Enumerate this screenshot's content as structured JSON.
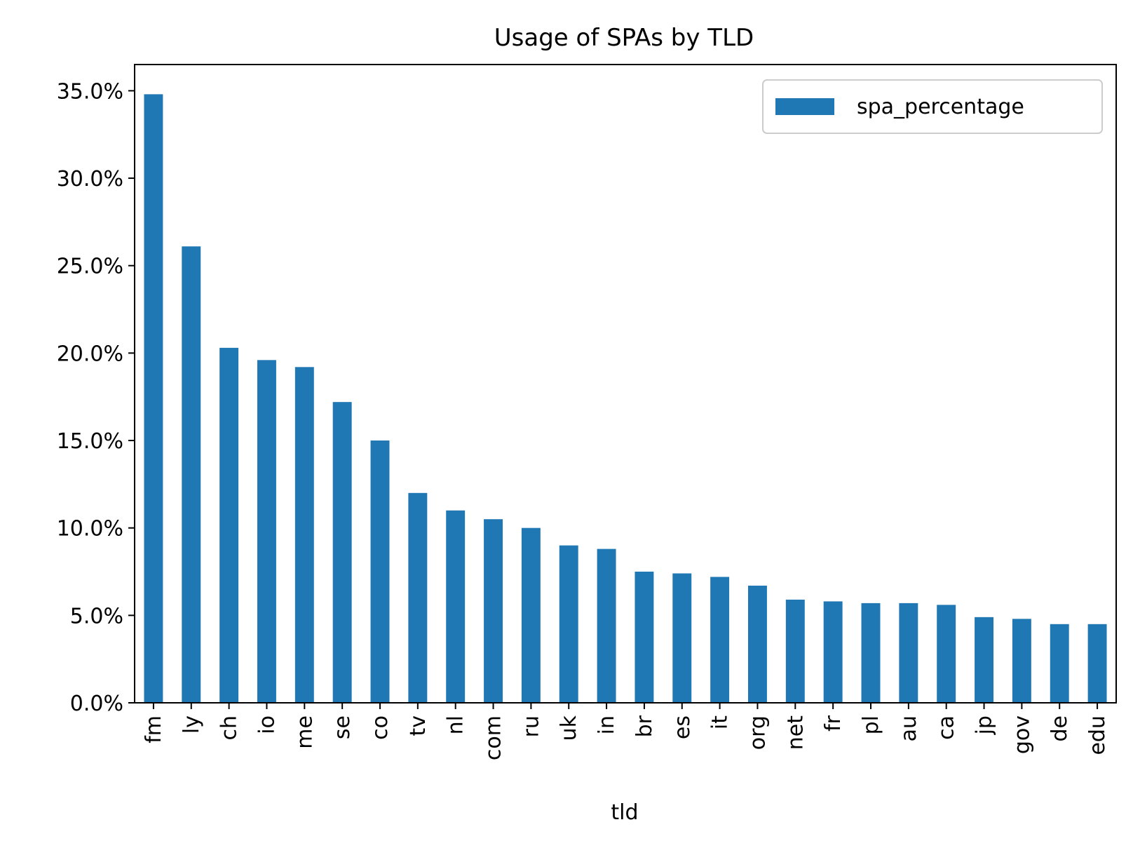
{
  "chart_data": {
    "type": "bar",
    "title": "Usage of SPAs by TLD",
    "xlabel": "tld",
    "ylabel": "",
    "categories": [
      "fm",
      "ly",
      "ch",
      "io",
      "me",
      "se",
      "co",
      "tv",
      "nl",
      "com",
      "ru",
      "uk",
      "in",
      "br",
      "es",
      "it",
      "org",
      "net",
      "fr",
      "pl",
      "au",
      "ca",
      "jp",
      "gov",
      "de",
      "edu"
    ],
    "series": [
      {
        "name": "spa_percentage",
        "values": [
          34.8,
          26.1,
          20.3,
          19.6,
          19.2,
          17.2,
          15.0,
          12.0,
          11.0,
          10.5,
          10.0,
          9.0,
          8.8,
          7.5,
          7.4,
          7.2,
          6.7,
          5.9,
          5.8,
          5.7,
          5.7,
          5.6,
          4.9,
          4.8,
          4.5,
          4.5
        ],
        "color": "#1f77b4"
      }
    ],
    "ylim": [
      0,
      36.5
    ],
    "yticks": [
      0,
      5,
      10,
      15,
      20,
      25,
      30,
      35
    ],
    "ytick_labels": [
      "0.0%",
      "5.0%",
      "10.0%",
      "15.0%",
      "20.0%",
      "25.0%",
      "30.0%",
      "35.0%"
    ],
    "grid": false,
    "legend": {
      "position": "top-right",
      "entries": [
        "spa_percentage"
      ]
    }
  }
}
